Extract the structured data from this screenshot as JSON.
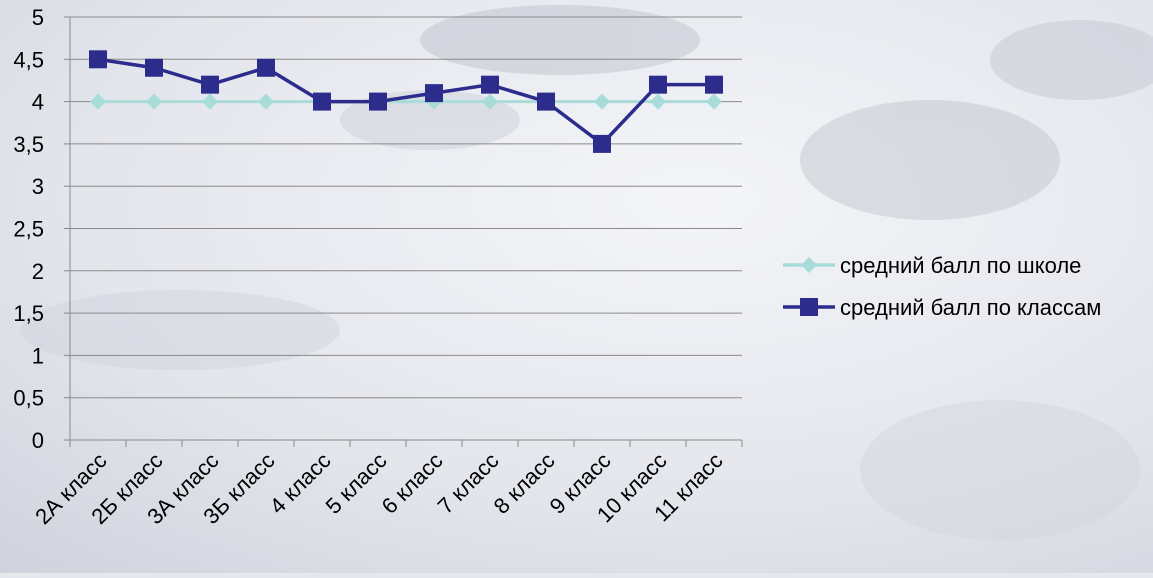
{
  "chart_data": {
    "type": "line",
    "categories": [
      "2А класс",
      "2Б класс",
      "3А класс",
      "3Б класс",
      "4 класс",
      "5 класс",
      "6 класс",
      "7 класс",
      "8 класс",
      "9 класс",
      "10 класс",
      "11 класс"
    ],
    "series": [
      {
        "name": "средний балл по школе",
        "values": [
          4,
          4,
          4,
          4,
          4,
          4,
          4,
          4,
          4,
          4,
          4,
          4
        ],
        "color": "#a8dcd9",
        "marker": "diamond"
      },
      {
        "name": "средний балл по классам",
        "values": [
          4.5,
          4.4,
          4.2,
          4.4,
          4.0,
          4.0,
          4.1,
          4.2,
          4.0,
          3.5,
          4.2,
          4.2
        ],
        "color": "#2c2c8c",
        "marker": "square"
      }
    ],
    "yticks": [
      "0",
      "0,5",
      "1",
      "1,5",
      "2",
      "2,5",
      "3",
      "3,5",
      "4",
      "4,5",
      "5"
    ],
    "ylim": [
      0,
      5
    ],
    "grid": true,
    "legend": "right"
  }
}
